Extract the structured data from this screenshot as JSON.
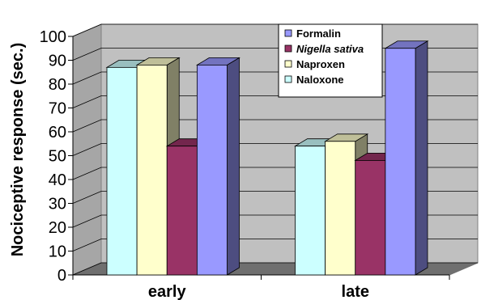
{
  "chart_data": {
    "type": "bar",
    "title": "",
    "xlabel": "",
    "ylabel": "Nociceptive response (sec.)",
    "ylim": [
      0,
      100
    ],
    "yticks": [
      0,
      10,
      20,
      30,
      40,
      50,
      60,
      70,
      80,
      90,
      100
    ],
    "grid": true,
    "legend_position": "top-right",
    "categories": [
      "early",
      "late"
    ],
    "series": [
      {
        "name": "Naloxone",
        "color": "#ccffff",
        "values": [
          87,
          54
        ]
      },
      {
        "name": "Naproxen",
        "color": "#ffffcc",
        "values": [
          88,
          56
        ]
      },
      {
        "name": "Nigella sativa",
        "color": "#993366",
        "values": [
          54,
          48
        ],
        "italic": true
      },
      {
        "name": "Formalin",
        "color": "#9999ff",
        "values": [
          88,
          95
        ]
      }
    ],
    "legend_order": [
      "Formalin",
      "Nigella sativa",
      "Naproxen",
      "Naloxone"
    ]
  }
}
